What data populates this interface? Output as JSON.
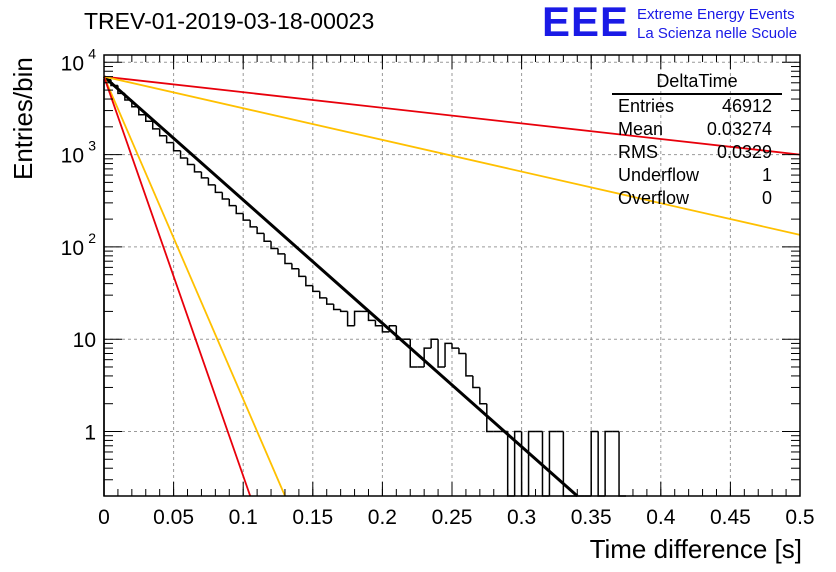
{
  "title": "TREV-01-2019-03-18-00023",
  "logo": {
    "mark": "EEE",
    "line1": "Extreme Energy Events",
    "line2": "La Scienza nelle Scuole"
  },
  "colors": {
    "histogram": "#000000",
    "fit": "#000000",
    "red_curve": "#e8000b",
    "orange_curve": "#ffc000",
    "logo": "#1a1ae6",
    "grid": "#9a9a9a"
  },
  "stats": {
    "title": "DeltaTime",
    "rows": [
      {
        "label": "Entries",
        "value": "46912"
      },
      {
        "label": "Mean",
        "value": "0.03274"
      },
      {
        "label": "RMS",
        "value": "0.0329"
      },
      {
        "label": "Underflow",
        "value": "1"
      },
      {
        "label": "Overflow",
        "value": "0"
      }
    ]
  },
  "chart_data": {
    "type": "bar",
    "xlabel": "Time difference [s]",
    "ylabel": "Entries/bin",
    "xlim": [
      0,
      0.5
    ],
    "ylim": [
      0.2,
      12000
    ],
    "yscale": "log",
    "grid": true,
    "legend": "top-right stats box",
    "x_ticks": [
      "0",
      "0.05",
      "0.1",
      "0.15",
      "0.2",
      "0.25",
      "0.3",
      "0.35",
      "0.4",
      "0.45",
      "0.5"
    ],
    "y_ticks": [
      {
        "value": 1,
        "label": "1"
      },
      {
        "value": 10,
        "label": "10"
      },
      {
        "value": 100,
        "label": "10",
        "exp": "2"
      },
      {
        "value": 1000,
        "label": "10",
        "exp": "3"
      },
      {
        "value": 10000,
        "label": "10",
        "exp": "4"
      }
    ],
    "bin_width": 0.005,
    "histogram": [
      [
        0.0,
        6500
      ],
      [
        0.005,
        5600
      ],
      [
        0.01,
        4600
      ],
      [
        0.015,
        3900
      ],
      [
        0.02,
        3300
      ],
      [
        0.025,
        2700
      ],
      [
        0.03,
        2300
      ],
      [
        0.035,
        1900
      ],
      [
        0.04,
        1600
      ],
      [
        0.045,
        1350
      ],
      [
        0.05,
        1100
      ],
      [
        0.055,
        920
      ],
      [
        0.06,
        780
      ],
      [
        0.065,
        650
      ],
      [
        0.07,
        560
      ],
      [
        0.075,
        470
      ],
      [
        0.08,
        390
      ],
      [
        0.085,
        330
      ],
      [
        0.09,
        280
      ],
      [
        0.095,
        230
      ],
      [
        0.1,
        195
      ],
      [
        0.105,
        165
      ],
      [
        0.11,
        140
      ],
      [
        0.115,
        115
      ],
      [
        0.12,
        96
      ],
      [
        0.125,
        84
      ],
      [
        0.13,
        66
      ],
      [
        0.135,
        58
      ],
      [
        0.14,
        48
      ],
      [
        0.145,
        38
      ],
      [
        0.15,
        33
      ],
      [
        0.155,
        28
      ],
      [
        0.16,
        24
      ],
      [
        0.165,
        21
      ],
      [
        0.17,
        20
      ],
      [
        0.175,
        14
      ],
      [
        0.18,
        20
      ],
      [
        0.185,
        20
      ],
      [
        0.19,
        16
      ],
      [
        0.195,
        14
      ],
      [
        0.2,
        12
      ],
      [
        0.205,
        14
      ],
      [
        0.21,
        10
      ],
      [
        0.215,
        10
      ],
      [
        0.22,
        5
      ],
      [
        0.225,
        5
      ],
      [
        0.23,
        8
      ],
      [
        0.235,
        10
      ],
      [
        0.24,
        5
      ],
      [
        0.245,
        9
      ],
      [
        0.25,
        8
      ],
      [
        0.255,
        7
      ],
      [
        0.26,
        4
      ],
      [
        0.265,
        3
      ],
      [
        0.27,
        2
      ],
      [
        0.275,
        1
      ],
      [
        0.28,
        1
      ],
      [
        0.285,
        1
      ],
      [
        0.29,
        0
      ],
      [
        0.295,
        1
      ],
      [
        0.3,
        0
      ],
      [
        0.305,
        1
      ],
      [
        0.31,
        1
      ],
      [
        0.315,
        0
      ],
      [
        0.32,
        1
      ],
      [
        0.325,
        1
      ],
      [
        0.33,
        0
      ],
      [
        0.335,
        0
      ],
      [
        0.34,
        0
      ],
      [
        0.345,
        0
      ],
      [
        0.35,
        1
      ],
      [
        0.355,
        0
      ],
      [
        0.36,
        1
      ],
      [
        0.365,
        1
      ],
      [
        0.37,
        0
      ]
    ],
    "series": [
      {
        "values": [
          [
            0.0,
            7000
          ],
          [
            0.34,
            0.2
          ]
        ]
      },
      {
        "values": [
          [
            0.0,
            7000
          ],
          [
            0.5,
            1000
          ]
        ]
      },
      {
        "values": [
          [
            0.0,
            7000
          ],
          [
            0.5,
            135
          ]
        ]
      },
      {
        "values": [
          [
            0.0,
            7000
          ],
          [
            0.13,
            0.2
          ]
        ]
      },
      {
        "values": [
          [
            0.0,
            7000
          ],
          [
            0.105,
            0.2
          ]
        ]
      }
    ]
  }
}
